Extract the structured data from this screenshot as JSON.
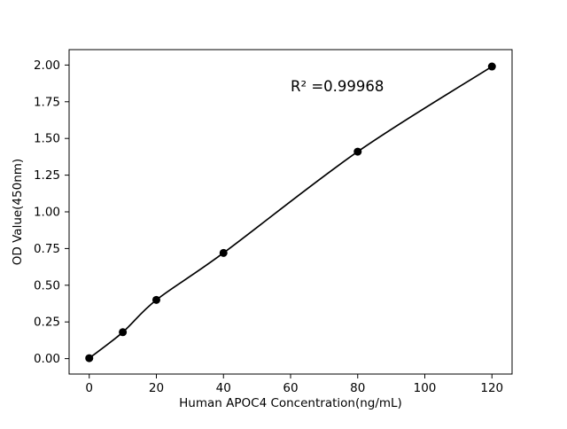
{
  "chart_data": {
    "type": "scatter",
    "x": [
      0,
      10,
      20,
      40,
      80,
      120
    ],
    "y": [
      0.003,
      0.18,
      0.4,
      0.72,
      1.41,
      1.99
    ],
    "title": "",
    "xlabel": "Human APOC4 Concentration(ng/mL)",
    "ylabel": "OD Value(450nm)",
    "annotation": {
      "text": "R² =0.99968",
      "x": 60,
      "y": 1.82
    },
    "xticks": [
      0,
      20,
      40,
      60,
      80,
      100,
      120
    ],
    "xtick_labels": [
      "0",
      "20",
      "40",
      "60",
      "80",
      "100",
      "120"
    ],
    "yticks": [
      0,
      0.25,
      0.5,
      0.75,
      1,
      1.25,
      1.5,
      1.75,
      2
    ],
    "ytick_labels": [
      "0.00",
      "0.25",
      "0.50",
      "0.75",
      "1.00",
      "1.25",
      "1.50",
      "1.75",
      "2.00"
    ],
    "xlim": [
      -6,
      126
    ],
    "ylim": [
      -0.105,
      2.105
    ],
    "grid": false,
    "legend": null,
    "curve": "smooth-fit",
    "marker_color": "#000000",
    "line_color": "#000000",
    "background_color": "#ffffff"
  }
}
